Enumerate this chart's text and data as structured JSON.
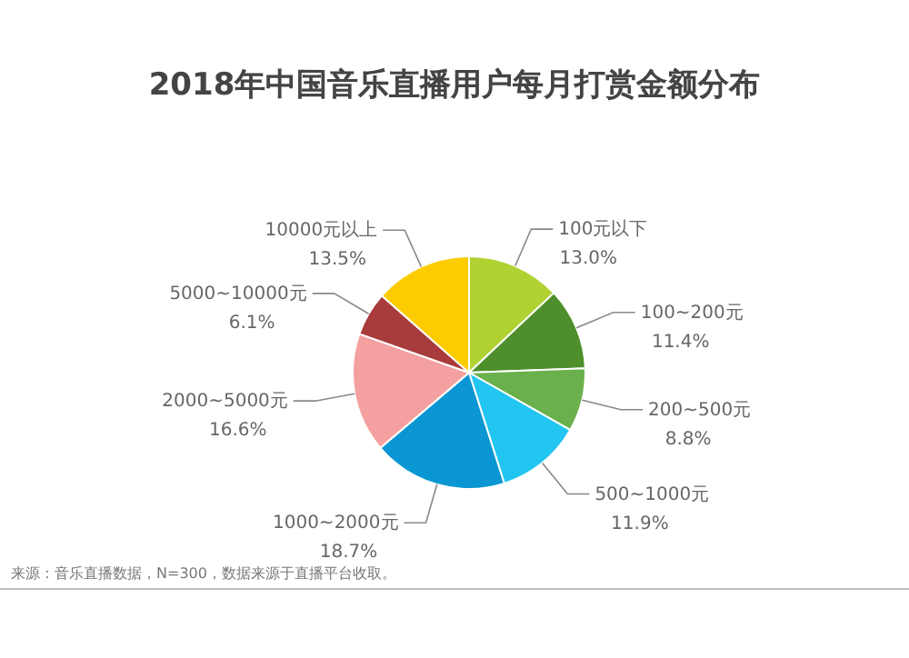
{
  "chart_data": {
    "type": "pie",
    "title": "2018年中国音乐直播用户每月打赏金额分布",
    "categories": [
      "100元以下",
      "100~200元",
      "200~500元",
      "500~1000元",
      "1000~2000元",
      "2000~5000元",
      "5000~10000元",
      "10000元以上"
    ],
    "values": [
      13.0,
      11.4,
      8.8,
      11.9,
      18.7,
      16.6,
      6.1,
      13.5
    ],
    "colors": [
      "#b0d232",
      "#4e8f2c",
      "#6ab04c",
      "#22c5f0",
      "#0a96d2",
      "#f4a0a0",
      "#a83c3c",
      "#fccc00"
    ],
    "value_labels": [
      "13.0%",
      "11.4%",
      "8.8%",
      "11.9%",
      "18.7%",
      "16.6%",
      "6.1%",
      "13.5%"
    ],
    "annotations": [
      "来源：音乐直播数据，N=300，数据来源于直播平台收取。"
    ]
  }
}
